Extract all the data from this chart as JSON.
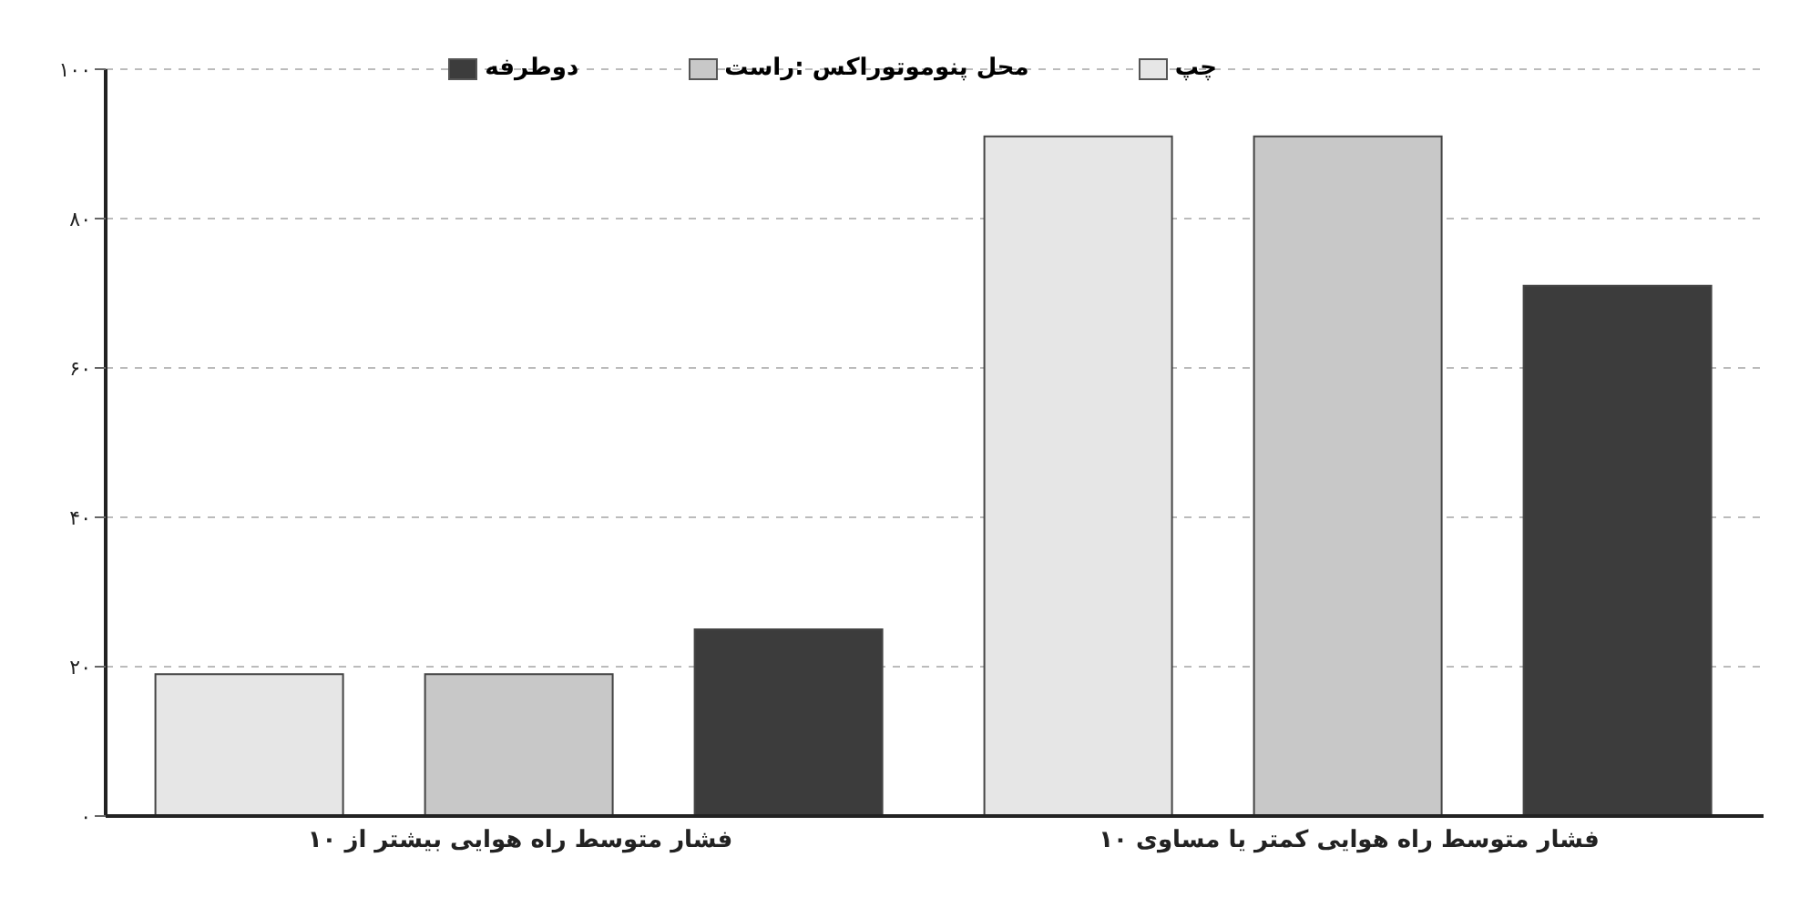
{
  "chart_data": {
    "type": "bar",
    "categories": [
      "فشار متوسط راه هوایی بیشتر از ۱۰",
      "فشار متوسط راه هوایی کمتر یا مساوی ۱۰"
    ],
    "series": [
      {
        "name": "چپ",
        "color": "#e6e6e6",
        "values": [
          19,
          91
        ]
      },
      {
        "name": "محل پنوموتوراکس :راست",
        "color": "#c8c8c8",
        "values": [
          19,
          91
        ]
      },
      {
        "name": "دوطرفه",
        "color": "#3c3c3c",
        "values": [
          25,
          71
        ]
      }
    ],
    "ylim": [
      0,
      100
    ],
    "yticks": [
      {
        "value": 0,
        "label": "۰"
      },
      {
        "value": 20,
        "label": "۲۰"
      },
      {
        "value": 40,
        "label": "۴۰"
      },
      {
        "value": 60,
        "label": "۶۰"
      },
      {
        "value": 80,
        "label": "۸۰"
      },
      {
        "value": 100,
        "label": "۱۰۰"
      }
    ],
    "grid": "y",
    "legend": "top"
  }
}
